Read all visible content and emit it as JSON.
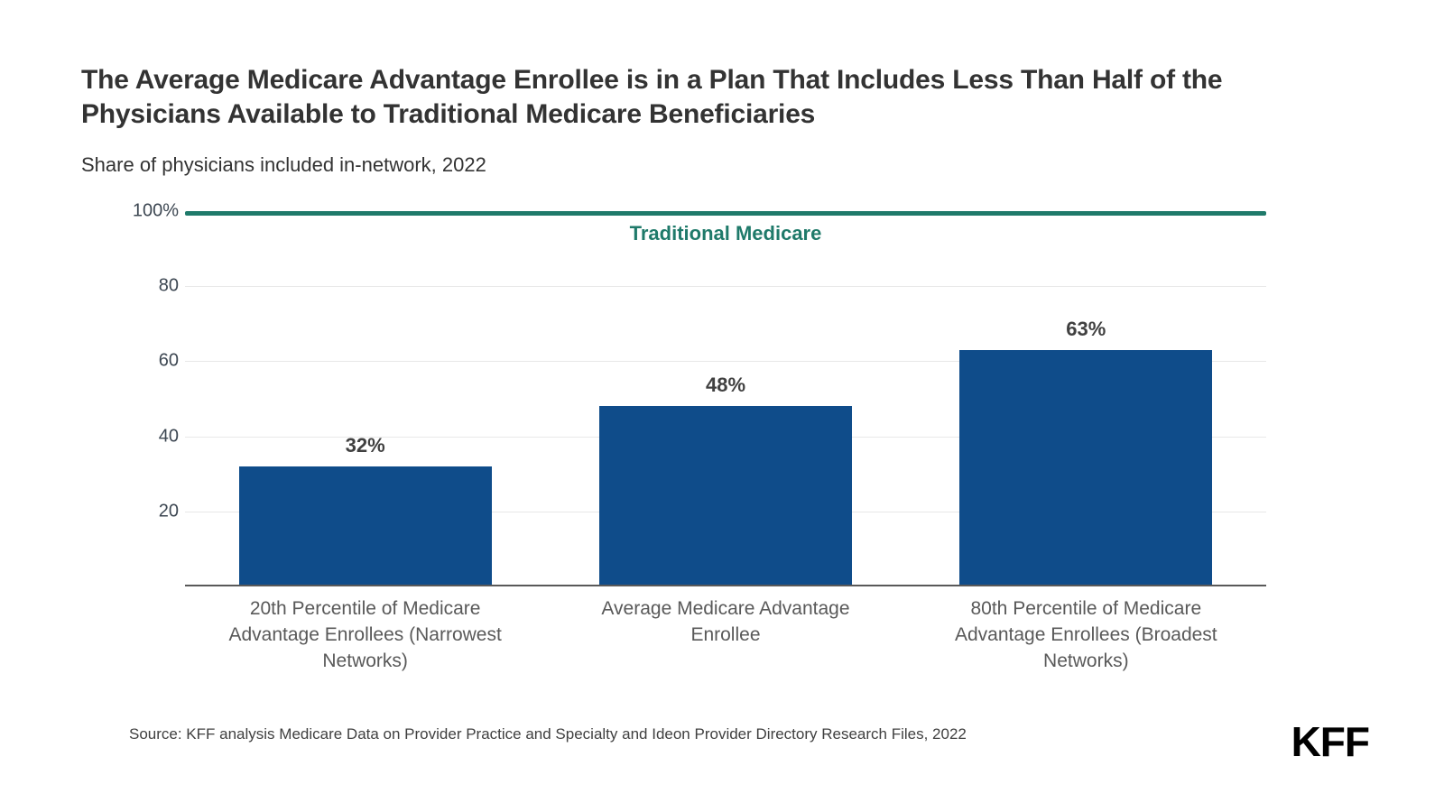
{
  "header": {
    "title": "The Average Medicare Advantage Enrollee is in a Plan That Includes Less Than Half of the Physicians Available to Traditional Medicare Beneficiaries",
    "subtitle": "Share of physicians included in-network, 2022"
  },
  "footer": {
    "source": "Source: KFF analysis Medicare Data on Provider Practice and Specialty and Ideon Provider Directory Research Files, 2022",
    "logo_text": "KFF"
  },
  "chart_data": {
    "type": "bar",
    "title": "Share of physicians included in-network, 2022",
    "categories": [
      "20th Percentile of Medicare Advantage Enrollees (Narrowest Networks)",
      "Average Medicare Advantage Enrollee",
      "80th Percentile of Medicare Advantage Enrollees (Broadest Networks)"
    ],
    "values": [
      32,
      48,
      63
    ],
    "value_labels": [
      "32%",
      "48%",
      "63%"
    ],
    "xlabel": "",
    "ylabel": "",
    "ylim": [
      0,
      100
    ],
    "y_ticks": [
      {
        "value": 100,
        "label": "100%"
      },
      {
        "value": 80,
        "label": "80"
      },
      {
        "value": 60,
        "label": "60"
      },
      {
        "value": 40,
        "label": "40"
      },
      {
        "value": 20,
        "label": "20"
      }
    ],
    "grid": true,
    "legend": "none",
    "reference_line": {
      "value": 100,
      "label": "Traditional Medicare",
      "color": "#1f7a6a"
    },
    "bar_color": "#0f4c8a",
    "value_label_color": "#404040",
    "tick_label_color": "#3d4752",
    "category_label_color": "#595959",
    "gridline_color": "#e8e8e8",
    "axis_line_color": "#595959"
  }
}
